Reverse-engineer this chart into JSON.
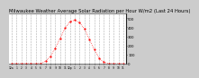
{
  "title": "Milwaukee Weather Average Solar Radiation per Hour W/m2 (Last 24 Hours)",
  "title_fontsize": 3.8,
  "bg_color": "#cccccc",
  "plot_bg_color": "#ffffff",
  "line_color": "#ff0000",
  "grid_color": "#999999",
  "hours": [
    0,
    1,
    2,
    3,
    4,
    5,
    6,
    7,
    8,
    9,
    10,
    11,
    12,
    13,
    14,
    15,
    16,
    17,
    18,
    19,
    20,
    21,
    22,
    23
  ],
  "values": [
    0,
    0,
    0,
    0,
    0,
    0,
    2,
    25,
    80,
    170,
    280,
    390,
    460,
    480,
    450,
    380,
    270,
    155,
    60,
    15,
    2,
    0,
    0,
    0
  ],
  "ylim": [
    0,
    550
  ],
  "yticks": [
    0,
    100,
    200,
    300,
    400,
    500
  ],
  "xlim": [
    -0.5,
    23.5
  ],
  "grid_xticks": [
    0,
    3,
    6,
    9,
    12,
    15,
    18,
    21
  ],
  "xtick_positions": [
    0,
    1,
    2,
    3,
    4,
    5,
    6,
    7,
    8,
    9,
    10,
    11,
    12,
    13,
    14,
    15,
    16,
    17,
    18,
    19,
    20,
    21,
    22,
    23
  ],
  "xtick_labels": [
    "12a",
    "1",
    "2",
    "3",
    "4",
    "5",
    "6",
    "7",
    "8",
    "9",
    "10",
    "11",
    "12p",
    "1",
    "2",
    "3",
    "4",
    "5",
    "6",
    "7",
    "8",
    "9",
    "10",
    "11"
  ]
}
